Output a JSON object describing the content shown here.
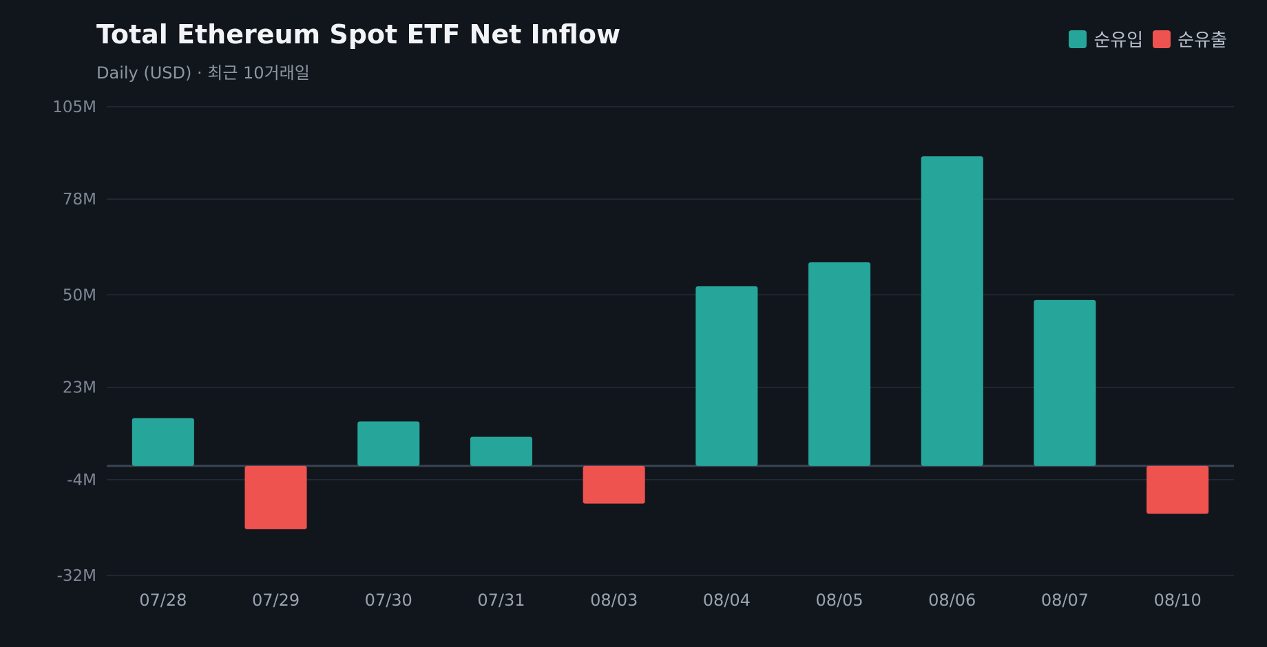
{
  "chart_data": {
    "type": "bar",
    "title": "Total Ethereum Spot ETF Net Inflow",
    "subtitle": "Daily (USD) · 최근 10거래일",
    "legend": [
      {
        "label": "순유입",
        "color": "#26a69a"
      },
      {
        "label": "순유출",
        "color": "#ef5350"
      }
    ],
    "legend_position": "top-right",
    "categories": [
      "07/28",
      "07/29",
      "07/30",
      "07/31",
      "08/03",
      "08/04",
      "08/05",
      "08/06",
      "08/07",
      "08/10"
    ],
    "values": [
      14,
      -18.5,
      13,
      8.5,
      -11,
      52.5,
      59.5,
      90.5,
      48.5,
      -14
    ],
    "y_ticks": [
      "105M",
      "78M",
      "50M",
      "23M",
      "-4M",
      "-32M"
    ],
    "y_tick_values": [
      105,
      78,
      50,
      23,
      -4,
      -32
    ],
    "ylim": [
      -32,
      105
    ],
    "grid": true,
    "positive_color": "#26a69a",
    "negative_color": "#ef5350"
  }
}
